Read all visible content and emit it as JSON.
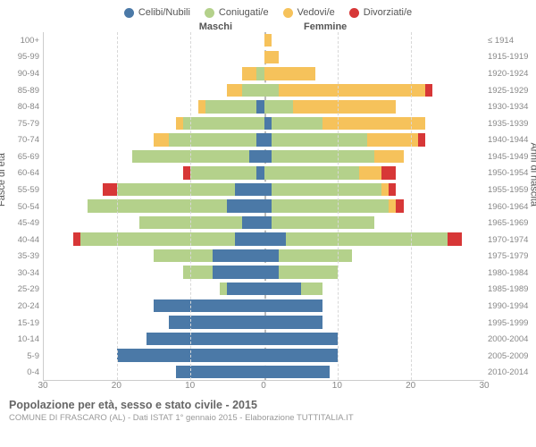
{
  "legend": [
    {
      "label": "Celibi/Nubili",
      "color": "#4b79a7"
    },
    {
      "label": "Coniugati/e",
      "color": "#b4d18b"
    },
    {
      "label": "Vedovi/e",
      "color": "#f6c25b"
    },
    {
      "label": "Divorziati/e",
      "color": "#d73737"
    }
  ],
  "headers": {
    "left": "Maschi",
    "right": "Femmine"
  },
  "ylabels": {
    "left": "Fasce di età",
    "right": "Anni di nascita"
  },
  "xaxis": {
    "min": -30,
    "max": 30,
    "ticks": [
      30,
      20,
      10,
      0,
      10,
      20,
      30
    ]
  },
  "age_groups": [
    "100+",
    "95-99",
    "90-94",
    "85-89",
    "80-84",
    "75-79",
    "70-74",
    "65-69",
    "60-64",
    "55-59",
    "50-54",
    "45-49",
    "40-44",
    "35-39",
    "30-34",
    "25-29",
    "20-24",
    "15-19",
    "10-14",
    "5-9",
    "0-4"
  ],
  "birth_years": [
    "≤ 1914",
    "1915-1919",
    "1920-1924",
    "1925-1929",
    "1930-1934",
    "1935-1939",
    "1940-1944",
    "1945-1949",
    "1950-1954",
    "1955-1959",
    "1960-1964",
    "1965-1969",
    "1970-1974",
    "1975-1979",
    "1980-1984",
    "1985-1989",
    "1990-1994",
    "1995-1999",
    "2000-2004",
    "2005-2009",
    "2010-2014"
  ],
  "data": [
    {
      "m": {
        "c": 0,
        "co": 0,
        "v": 0,
        "d": 0
      },
      "f": {
        "c": 0,
        "co": 0,
        "v": 1,
        "d": 0
      }
    },
    {
      "m": {
        "c": 0,
        "co": 0,
        "v": 0,
        "d": 0
      },
      "f": {
        "c": 0,
        "co": 0,
        "v": 2,
        "d": 0
      }
    },
    {
      "m": {
        "c": 0,
        "co": 1,
        "v": 2,
        "d": 0
      },
      "f": {
        "c": 0,
        "co": 0,
        "v": 7,
        "d": 0
      }
    },
    {
      "m": {
        "c": 0,
        "co": 3,
        "v": 2,
        "d": 0
      },
      "f": {
        "c": 0,
        "co": 2,
        "v": 20,
        "d": 1
      }
    },
    {
      "m": {
        "c": 1,
        "co": 7,
        "v": 1,
        "d": 0
      },
      "f": {
        "c": 0,
        "co": 4,
        "v": 14,
        "d": 0
      }
    },
    {
      "m": {
        "c": 0,
        "co": 11,
        "v": 1,
        "d": 0
      },
      "f": {
        "c": 1,
        "co": 7,
        "v": 14,
        "d": 0
      }
    },
    {
      "m": {
        "c": 1,
        "co": 12,
        "v": 2,
        "d": 0
      },
      "f": {
        "c": 1,
        "co": 13,
        "v": 7,
        "d": 1
      }
    },
    {
      "m": {
        "c": 2,
        "co": 16,
        "v": 0,
        "d": 0
      },
      "f": {
        "c": 1,
        "co": 14,
        "v": 4,
        "d": 0
      }
    },
    {
      "m": {
        "c": 1,
        "co": 9,
        "v": 0,
        "d": 1
      },
      "f": {
        "c": 0,
        "co": 13,
        "v": 3,
        "d": 2
      }
    },
    {
      "m": {
        "c": 4,
        "co": 16,
        "v": 0,
        "d": 2
      },
      "f": {
        "c": 1,
        "co": 15,
        "v": 1,
        "d": 1
      }
    },
    {
      "m": {
        "c": 5,
        "co": 19,
        "v": 0,
        "d": 0
      },
      "f": {
        "c": 1,
        "co": 16,
        "v": 1,
        "d": 1
      }
    },
    {
      "m": {
        "c": 3,
        "co": 14,
        "v": 0,
        "d": 0
      },
      "f": {
        "c": 1,
        "co": 14,
        "v": 0,
        "d": 0
      }
    },
    {
      "m": {
        "c": 4,
        "co": 21,
        "v": 0,
        "d": 1
      },
      "f": {
        "c": 3,
        "co": 22,
        "v": 0,
        "d": 2
      }
    },
    {
      "m": {
        "c": 7,
        "co": 8,
        "v": 0,
        "d": 0
      },
      "f": {
        "c": 2,
        "co": 10,
        "v": 0,
        "d": 0
      }
    },
    {
      "m": {
        "c": 7,
        "co": 4,
        "v": 0,
        "d": 0
      },
      "f": {
        "c": 2,
        "co": 8,
        "v": 0,
        "d": 0
      }
    },
    {
      "m": {
        "c": 5,
        "co": 1,
        "v": 0,
        "d": 0
      },
      "f": {
        "c": 5,
        "co": 3,
        "v": 0,
        "d": 0
      }
    },
    {
      "m": {
        "c": 15,
        "co": 0,
        "v": 0,
        "d": 0
      },
      "f": {
        "c": 8,
        "co": 0,
        "v": 0,
        "d": 0
      }
    },
    {
      "m": {
        "c": 13,
        "co": 0,
        "v": 0,
        "d": 0
      },
      "f": {
        "c": 8,
        "co": 0,
        "v": 0,
        "d": 0
      }
    },
    {
      "m": {
        "c": 16,
        "co": 0,
        "v": 0,
        "d": 0
      },
      "f": {
        "c": 10,
        "co": 0,
        "v": 0,
        "d": 0
      }
    },
    {
      "m": {
        "c": 20,
        "co": 0,
        "v": 0,
        "d": 0
      },
      "f": {
        "c": 10,
        "co": 0,
        "v": 0,
        "d": 0
      }
    },
    {
      "m": {
        "c": 12,
        "co": 0,
        "v": 0,
        "d": 0
      },
      "f": {
        "c": 9,
        "co": 0,
        "v": 0,
        "d": 0
      }
    }
  ],
  "grid_color": "#d8d8d8",
  "title": "Popolazione per età, sesso e stato civile - 2015",
  "subtitle": "COMUNE DI FRASCARO (AL) - Dati ISTAT 1° gennaio 2015 - Elaborazione TUTTITALIA.IT"
}
